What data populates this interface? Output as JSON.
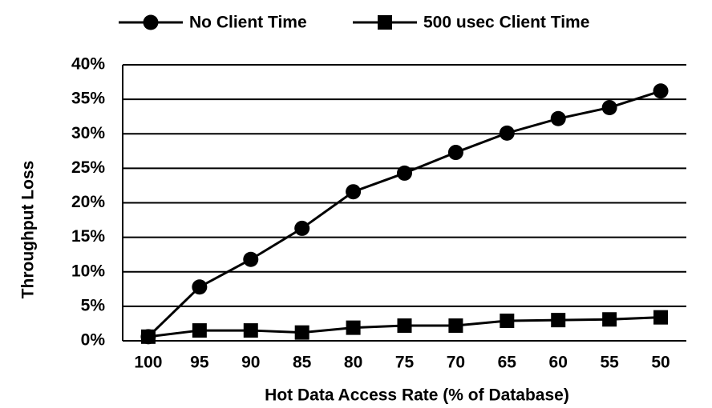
{
  "chart_data": {
    "type": "line",
    "x_label": "Hot Data Access Rate (% of Database)",
    "y_label": "Throughput Loss",
    "categories": [
      "100",
      "95",
      "90",
      "85",
      "80",
      "75",
      "70",
      "65",
      "60",
      "55",
      "50"
    ],
    "series": [
      {
        "name": "No Client Time",
        "color": "#000000",
        "marker": "circle",
        "values": [
          0.6,
          7.8,
          11.8,
          16.3,
          21.6,
          24.3,
          27.3,
          30.1,
          32.2,
          33.8,
          36.2
        ]
      },
      {
        "name": "500 usec Client Time",
        "color": "#000000",
        "marker": "square",
        "values": [
          0.6,
          1.5,
          1.5,
          1.2,
          1.9,
          2.2,
          2.2,
          2.9,
          3.0,
          3.1,
          3.4
        ]
      }
    ],
    "ylim": [
      0,
      40
    ],
    "yticks": [
      {
        "value": 0,
        "label": "0%"
      },
      {
        "value": 5,
        "label": "5%"
      },
      {
        "value": 10,
        "label": "10%"
      },
      {
        "value": 15,
        "label": "15%"
      },
      {
        "value": 20,
        "label": "20%"
      },
      {
        "value": 25,
        "label": "25%"
      },
      {
        "value": 30,
        "label": "30%"
      },
      {
        "value": 35,
        "label": "35%"
      },
      {
        "value": 40,
        "label": "40%"
      }
    ],
    "grid": true,
    "legend": "top"
  }
}
